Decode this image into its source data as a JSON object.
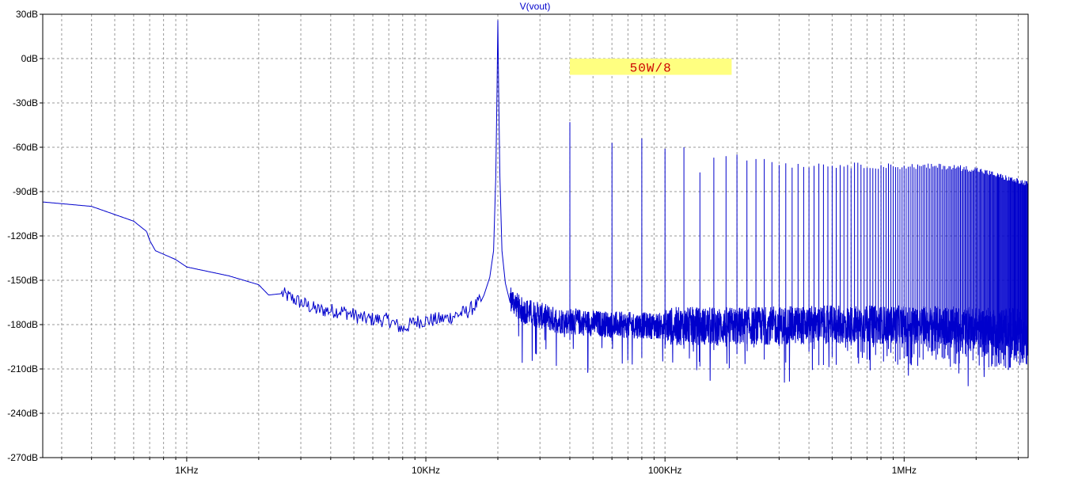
{
  "chart_data": {
    "type": "line",
    "title": "V(vout)",
    "xscale": "log",
    "xlim": [
      250,
      3300000
    ],
    "ylim": [
      -270,
      30
    ],
    "grid": true,
    "x_ticks": [
      {
        "value": 1000,
        "label": "1KHz"
      },
      {
        "value": 10000,
        "label": "10KHz"
      },
      {
        "value": 100000,
        "label": "100KHz"
      },
      {
        "value": 1000000,
        "label": "1MHz"
      }
    ],
    "y_ticks": [
      {
        "value": 30,
        "label": "30dB"
      },
      {
        "value": 0,
        "label": "0dB"
      },
      {
        "value": -30,
        "label": "-30dB"
      },
      {
        "value": -60,
        "label": "-60dB"
      },
      {
        "value": -90,
        "label": "-90dB"
      },
      {
        "value": -120,
        "label": "-120dB"
      },
      {
        "value": -150,
        "label": "-150dB"
      },
      {
        "value": -180,
        "label": "-180dB"
      },
      {
        "value": -210,
        "label": "-210dB"
      },
      {
        "value": -240,
        "label": "-240dB"
      },
      {
        "value": -270,
        "label": "-270dB"
      }
    ],
    "annotation": {
      "text": "50W/8",
      "x_start": 40000,
      "x_end": 190000,
      "y_top": 0,
      "y_bottom": -11,
      "box_color": "#ffff80",
      "text_color": "#cc0000"
    },
    "series": [
      {
        "name": "V(vout)",
        "color": "#0000cc",
        "noise_floor": [
          {
            "x": 250,
            "y": -97
          },
          {
            "x": 400,
            "y": -100
          },
          {
            "x": 600,
            "y": -110
          },
          {
            "x": 680,
            "y": -117
          },
          {
            "x": 700,
            "y": -123
          },
          {
            "x": 740,
            "y": -130
          },
          {
            "x": 900,
            "y": -136
          },
          {
            "x": 1000,
            "y": -141
          },
          {
            "x": 1500,
            "y": -147
          },
          {
            "x": 2000,
            "y": -153
          },
          {
            "x": 2200,
            "y": -160
          },
          {
            "x": 2500,
            "y": -159
          },
          {
            "x": 3000,
            "y": -165
          },
          {
            "x": 3500,
            "y": -170
          },
          {
            "x": 4500,
            "y": -171
          },
          {
            "x": 5500,
            "y": -176
          },
          {
            "x": 7000,
            "y": -177
          },
          {
            "x": 8000,
            "y": -183
          },
          {
            "x": 9000,
            "y": -178
          },
          {
            "x": 12000,
            "y": -176
          },
          {
            "x": 15000,
            "y": -171
          },
          {
            "x": 17000,
            "y": -164
          },
          {
            "x": 18000,
            "y": -157
          },
          {
            "x": 19000,
            "y": -140
          },
          {
            "x": 21000,
            "y": -140
          },
          {
            "x": 22000,
            "y": -160
          },
          {
            "x": 25000,
            "y": -170
          },
          {
            "x": 35000,
            "y": -177
          },
          {
            "x": 60000,
            "y": -180
          },
          {
            "x": 100000,
            "y": -181
          },
          {
            "x": 200000,
            "y": -181
          },
          {
            "x": 500000,
            "y": -180
          },
          {
            "x": 1000000,
            "y": -180
          },
          {
            "x": 3300000,
            "y": -182
          }
        ],
        "fundamental": {
          "x": 20000,
          "y": 26
        },
        "harmonic_peaks": [
          {
            "x": 40000,
            "y": -43
          },
          {
            "x": 60000,
            "y": -57
          },
          {
            "x": 80000,
            "y": -54
          },
          {
            "x": 100000,
            "y": -61
          },
          {
            "x": 120000,
            "y": -60
          },
          {
            "x": 140000,
            "y": -77
          },
          {
            "x": 160000,
            "y": -67
          },
          {
            "x": 180000,
            "y": -66
          },
          {
            "x": 200000,
            "y": -65
          },
          {
            "x": 220000,
            "y": -69
          },
          {
            "x": 240000,
            "y": -68
          },
          {
            "x": 260000,
            "y": -68
          },
          {
            "x": 280000,
            "y": -70
          },
          {
            "x": 300000,
            "y": -72
          },
          {
            "x": 500000,
            "y": -72
          },
          {
            "x": 1000000,
            "y": -73
          },
          {
            "x": 1500000,
            "y": -73
          },
          {
            "x": 2000000,
            "y": -75
          },
          {
            "x": 3300000,
            "y": -85
          }
        ]
      }
    ]
  }
}
